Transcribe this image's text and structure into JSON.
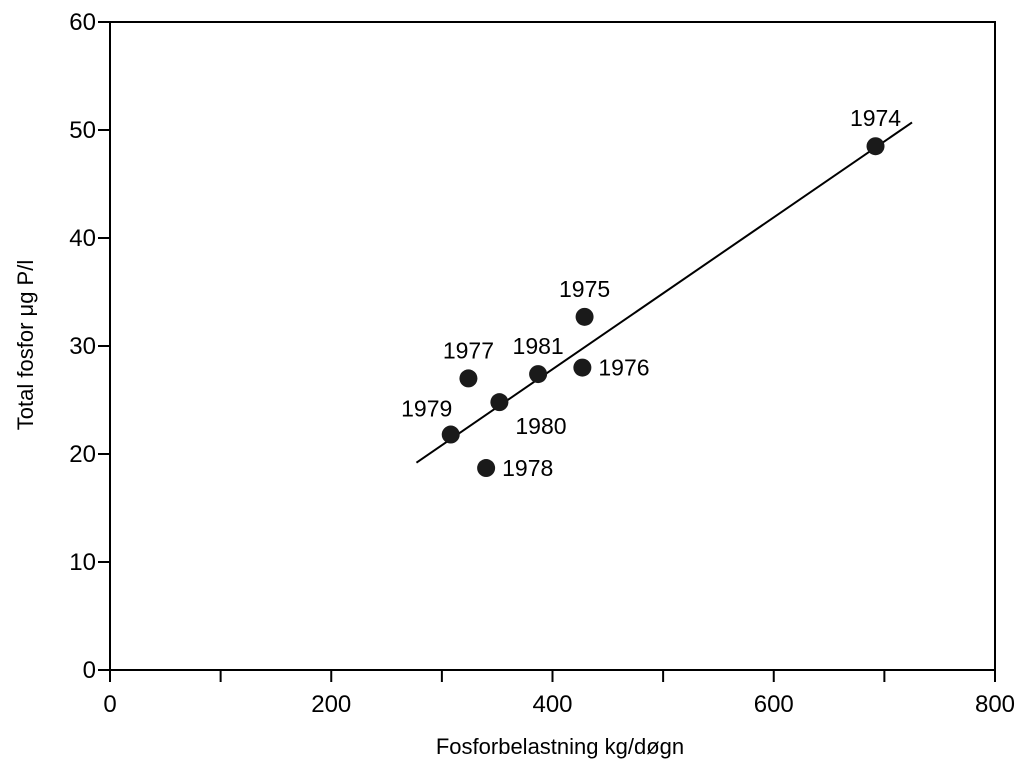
{
  "chart_data": {
    "type": "scatter",
    "title": "",
    "xlabel": "Fosforbelastning kg/døgn",
    "ylabel": "Total fosfor  μg P/l",
    "xlim": [
      0,
      800
    ],
    "ylim": [
      0,
      60
    ],
    "x_ticks": [
      0,
      100,
      200,
      300,
      400,
      500,
      600,
      700,
      800
    ],
    "x_tick_labels": [
      "0",
      "",
      "200",
      "",
      "400",
      "",
      "600",
      "",
      "800"
    ],
    "y_ticks": [
      0,
      10,
      20,
      30,
      40,
      50,
      60
    ],
    "y_tick_labels": [
      "0",
      "10",
      "20",
      "30",
      "40",
      "50",
      "60"
    ],
    "grid": false,
    "points": [
      {
        "label": "1974",
        "x": 692,
        "y": 48.5,
        "label_pos": "above"
      },
      {
        "label": "1975",
        "x": 429,
        "y": 32.7,
        "label_pos": "above"
      },
      {
        "label": "1976",
        "x": 427,
        "y": 28.0,
        "label_pos": "right"
      },
      {
        "label": "1977",
        "x": 324,
        "y": 27.0,
        "label_pos": "above"
      },
      {
        "label": "1978",
        "x": 340,
        "y": 18.7,
        "label_pos": "right"
      },
      {
        "label": "1979",
        "x": 308,
        "y": 21.8,
        "label_pos": "above-left"
      },
      {
        "label": "1980",
        "x": 352,
        "y": 24.8,
        "label_pos": "below-right"
      },
      {
        "label": "1981",
        "x": 387,
        "y": 27.4,
        "label_pos": "above"
      }
    ],
    "fit_line": {
      "x": [
        277,
        725
      ],
      "y": [
        19.2,
        50.7
      ]
    }
  }
}
